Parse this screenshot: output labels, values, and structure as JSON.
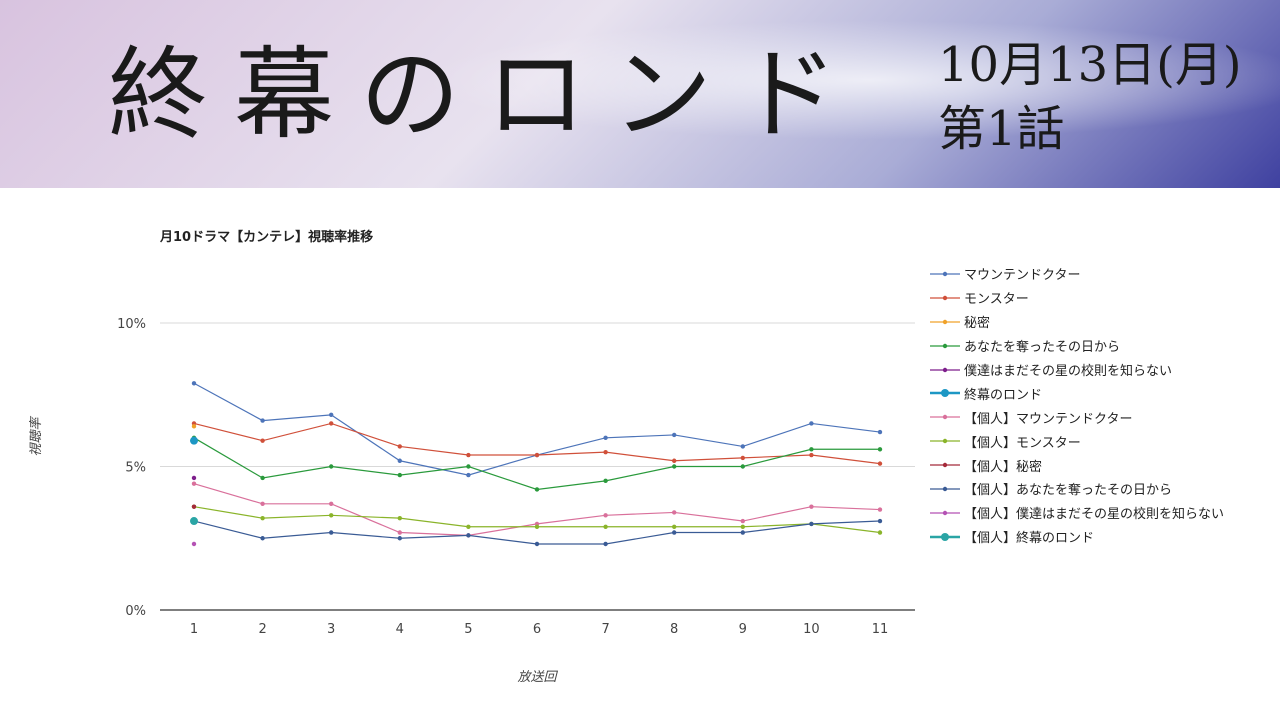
{
  "banner": {
    "title": "終幕のロンド",
    "date": "10月13日(月)",
    "episode": "第1話"
  },
  "chart_data": {
    "type": "line",
    "title": "月10ドラマ【カンテレ】視聴率推移",
    "xlabel": "放送回",
    "ylabel": "視聴率",
    "categories": [
      "1",
      "2",
      "3",
      "4",
      "5",
      "6",
      "7",
      "8",
      "9",
      "10",
      "11"
    ],
    "ylim": [
      0,
      10
    ],
    "yticks": [
      "0%",
      "5%",
      "10%"
    ],
    "grid": true,
    "legend_position": "right",
    "series": [
      {
        "name": "マウンテンドクター",
        "color": "#4d74b9",
        "values": [
          7.9,
          6.6,
          6.8,
          5.2,
          4.7,
          5.4,
          6.0,
          6.1,
          5.7,
          6.5,
          6.2
        ]
      },
      {
        "name": "モンスター",
        "color": "#d0503a",
        "values": [
          6.5,
          5.9,
          6.5,
          5.7,
          5.4,
          5.4,
          5.5,
          5.2,
          5.3,
          5.4,
          5.1
        ]
      },
      {
        "name": "秘密",
        "color": "#f0a22a",
        "values": [
          6.4,
          null,
          null,
          null,
          null,
          null,
          null,
          null,
          null,
          null,
          null
        ]
      },
      {
        "name": "あなたを奪ったその日から",
        "color": "#2a9a3c",
        "values": [
          6.0,
          4.6,
          5.0,
          4.7,
          5.0,
          4.2,
          4.5,
          5.0,
          5.0,
          5.6,
          5.6
        ]
      },
      {
        "name": "僕達はまだその星の校則を知らない",
        "color": "#7e1f8c",
        "values": [
          4.6,
          null,
          null,
          null,
          null,
          null,
          null,
          null,
          null,
          null,
          null
        ]
      },
      {
        "name": "終幕のロンド",
        "color": "#1d97c4",
        "highlight": true,
        "values": [
          5.9,
          null,
          null,
          null,
          null,
          null,
          null,
          null,
          null,
          null,
          null
        ]
      },
      {
        "name": "【個人】マウンテンドクター",
        "color": "#d9709b",
        "values": [
          4.4,
          3.7,
          3.7,
          2.7,
          2.6,
          3.0,
          3.3,
          3.4,
          3.1,
          3.6,
          3.5
        ]
      },
      {
        "name": "【個人】モンスター",
        "color": "#8ab42a",
        "values": [
          3.6,
          3.2,
          3.3,
          3.2,
          2.9,
          2.9,
          2.9,
          2.9,
          2.9,
          3.0,
          2.7
        ]
      },
      {
        "name": "【個人】秘密",
        "color": "#a52a3a",
        "values": [
          3.6,
          null,
          null,
          null,
          null,
          null,
          null,
          null,
          null,
          null,
          null
        ]
      },
      {
        "name": "【個人】あなたを奪ったその日から",
        "color": "#3a5b95",
        "values": [
          3.1,
          2.5,
          2.7,
          2.5,
          2.6,
          2.3,
          2.3,
          2.7,
          2.7,
          3.0,
          3.1
        ]
      },
      {
        "name": "【個人】僕達はまだその星の校則を知らない",
        "color": "#b452b4",
        "values": [
          2.3,
          null,
          null,
          null,
          null,
          null,
          null,
          null,
          null,
          null,
          null
        ]
      },
      {
        "name": "【個人】終幕のロンド",
        "color": "#2aa5a5",
        "highlight": true,
        "values": [
          3.1,
          null,
          null,
          null,
          null,
          null,
          null,
          null,
          null,
          null,
          null
        ]
      }
    ]
  }
}
